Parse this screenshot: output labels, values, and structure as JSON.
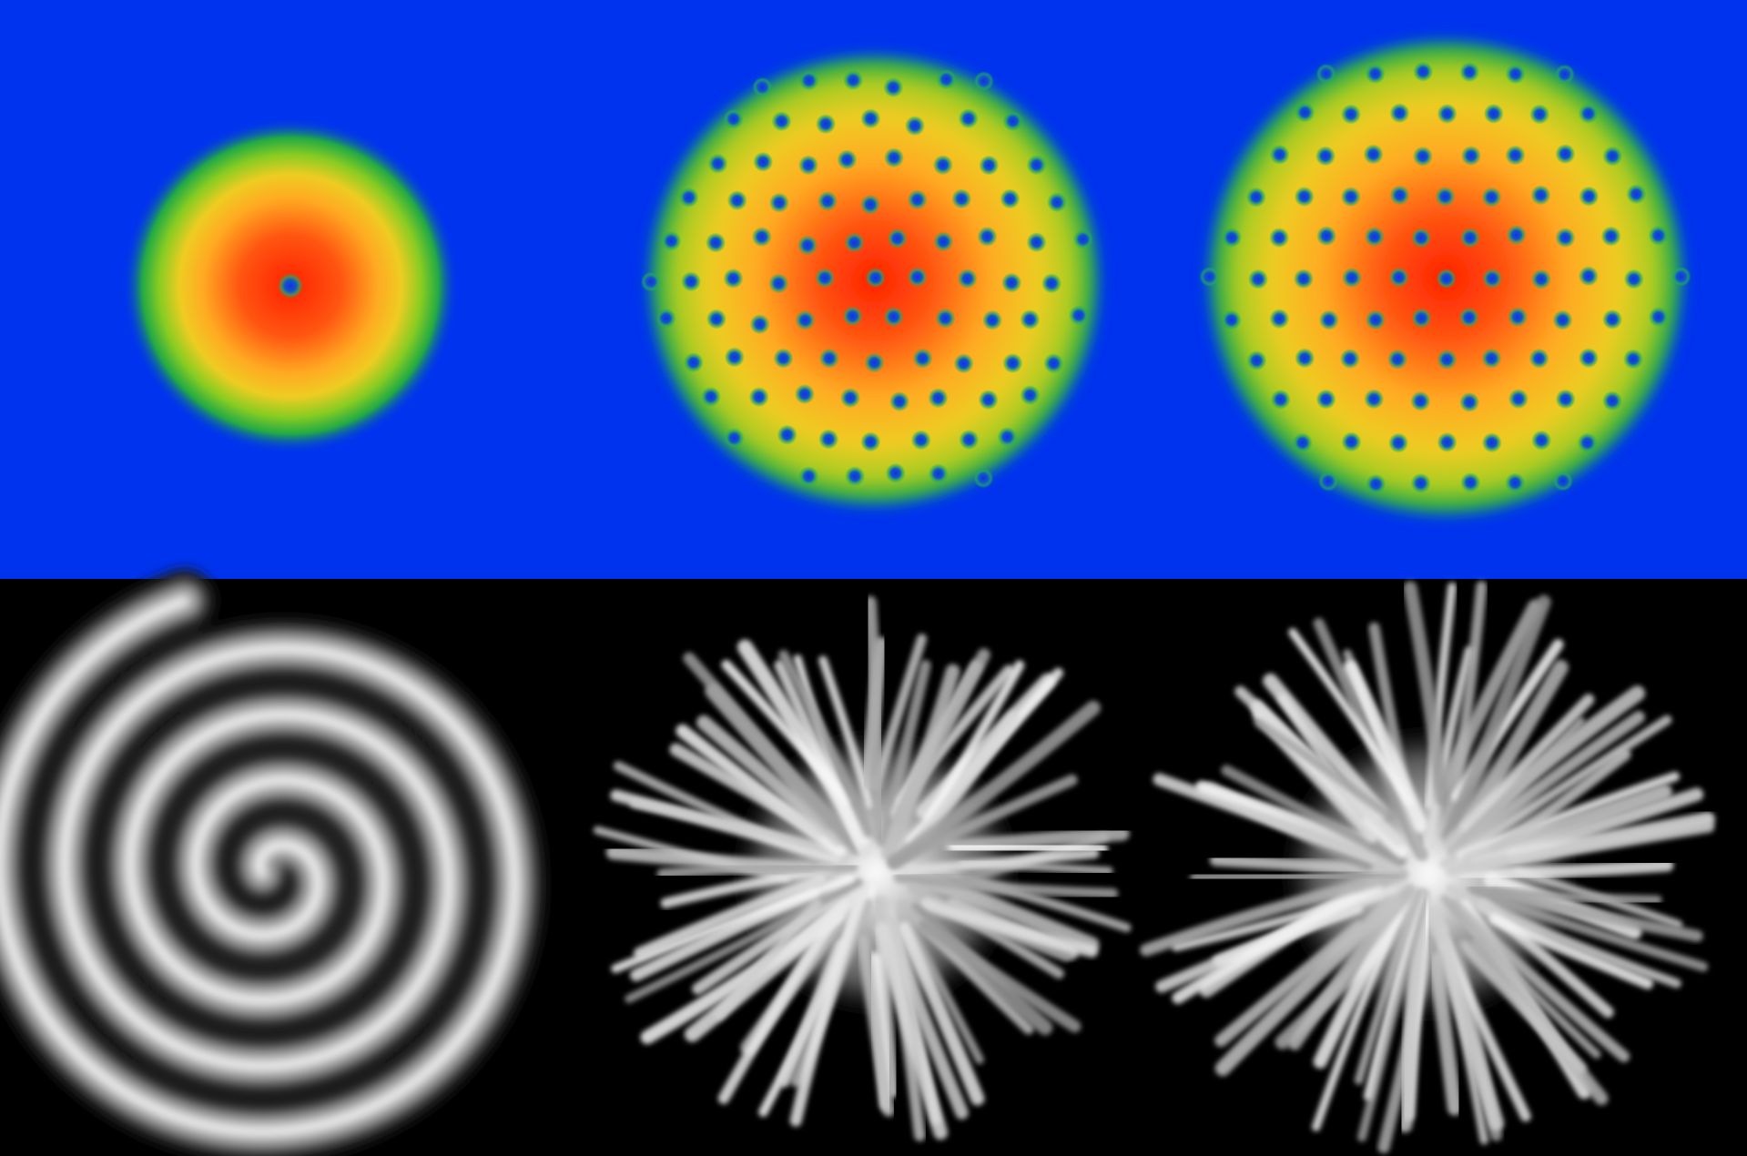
{
  "figure": {
    "rows": [
      {
        "id": "density-row",
        "kind": "density-colormap",
        "background": "#0033ee",
        "panels": [
          {
            "id": "single-vortex",
            "vortex_count": 1,
            "pattern": "single"
          },
          {
            "id": "vortex-lattice-irregular",
            "pattern": "lattice-irregular"
          },
          {
            "id": "vortex-lattice-ordered",
            "pattern": "lattice-ordered"
          }
        ]
      },
      {
        "id": "phase-row",
        "kind": "phase-grayscale",
        "background": "#000000",
        "panels": [
          {
            "id": "phase-spiral",
            "pattern": "spiral"
          },
          {
            "id": "phase-branched-1",
            "pattern": "branched"
          },
          {
            "id": "phase-branched-2",
            "pattern": "branched"
          }
        ]
      }
    ],
    "colormap": [
      "#0033ee",
      "#22aa44",
      "#88cc22",
      "#eecc22",
      "#ffaa22",
      "#ff5511",
      "#ff2200"
    ],
    "vortex_core_color": "#1133dd",
    "phase_colors": {
      "low": "#000000",
      "high": "#ffffff"
    }
  }
}
